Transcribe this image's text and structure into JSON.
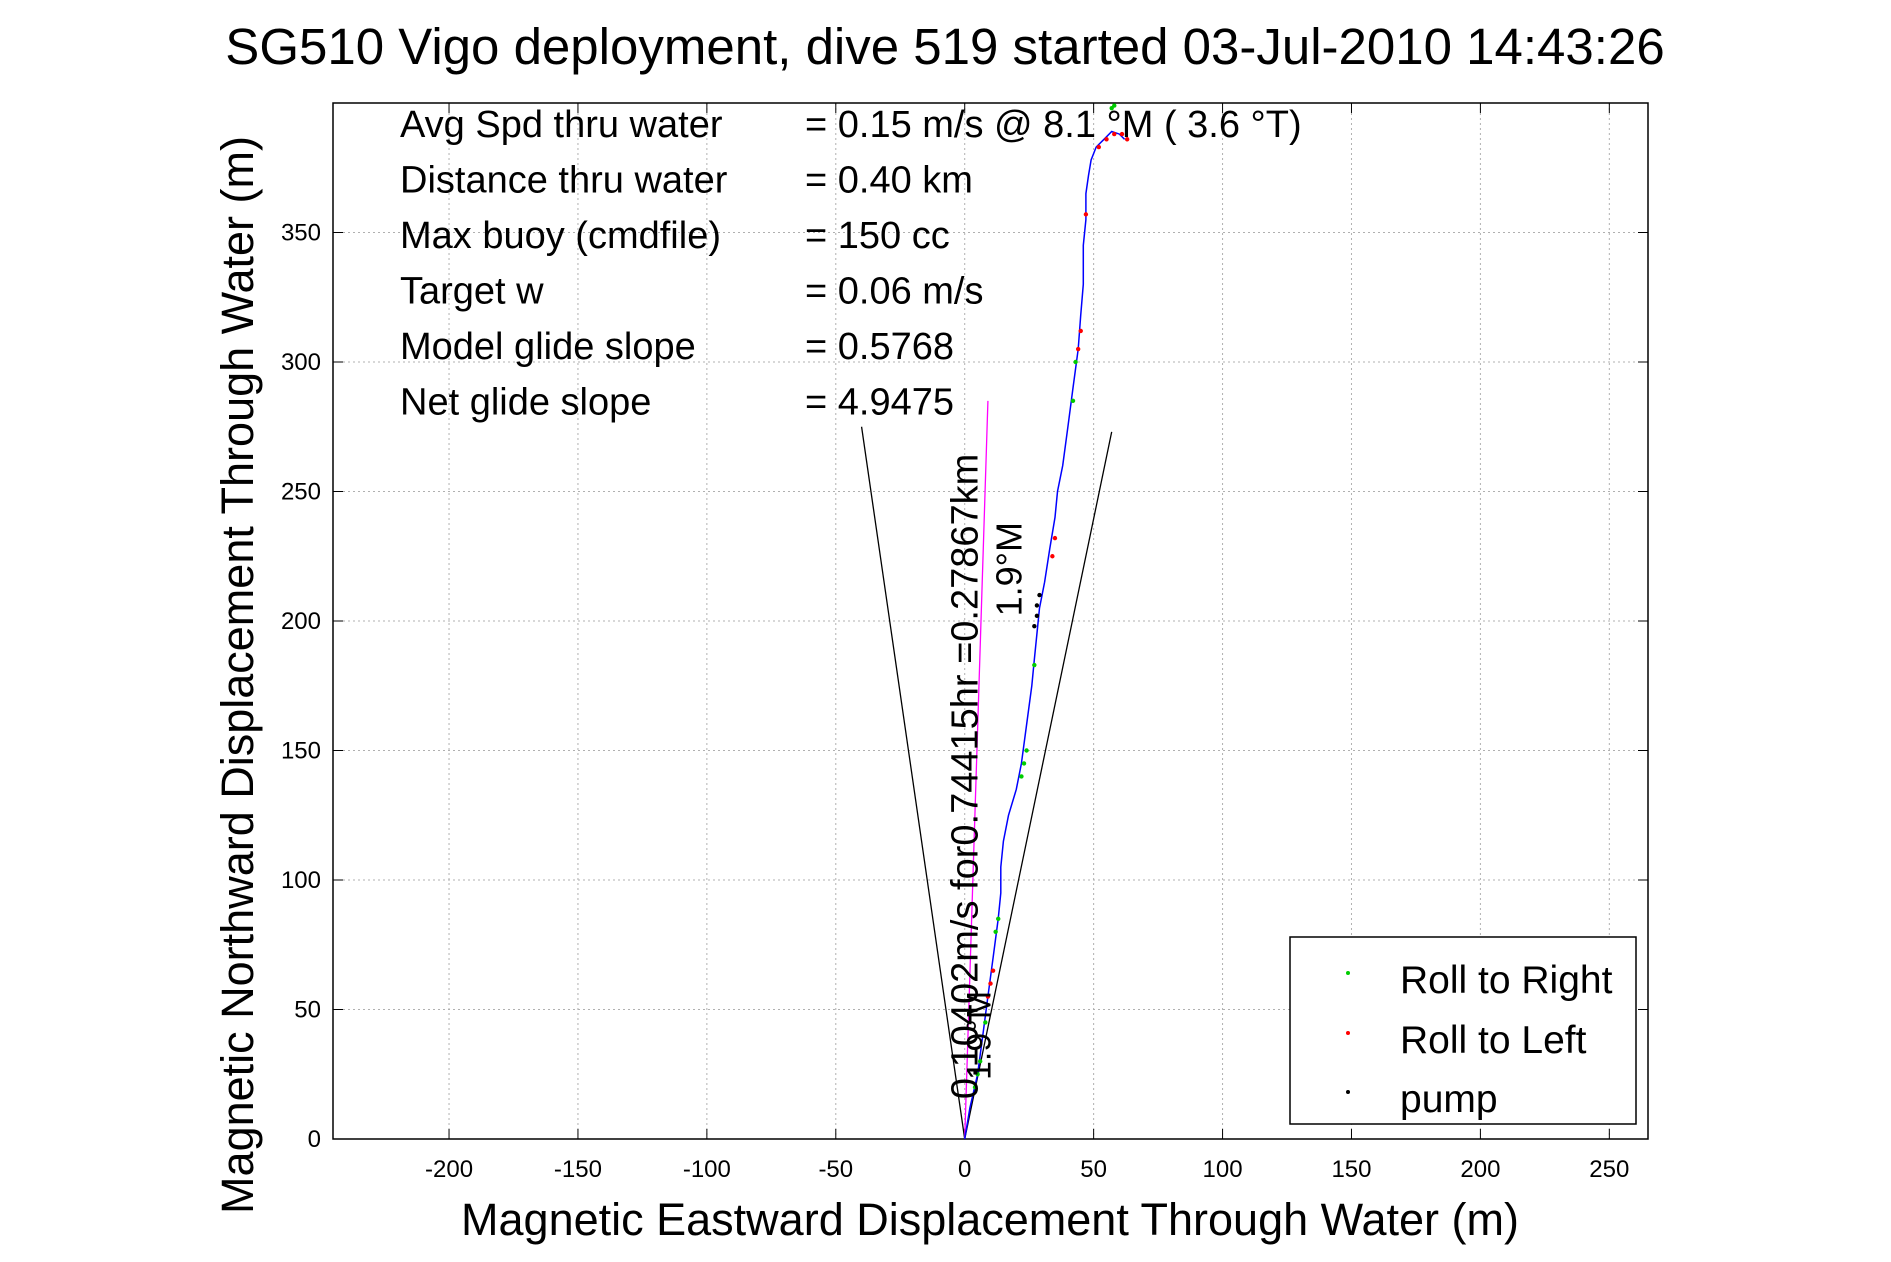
{
  "chart_data": {
    "type": "scatter",
    "title": "SG510 Vigo deployment, dive 519 started 03-Jul-2010 14:43:26",
    "xlabel": "Magnetic Eastward Displacement Through Water (m)",
    "ylabel": "Magnetic Northward Displacement Through Water (m)",
    "xlim": [
      -245,
      265
    ],
    "ylim": [
      0,
      400
    ],
    "xticks": [
      -200,
      -150,
      -100,
      -50,
      0,
      50,
      100,
      150,
      200,
      250
    ],
    "yticks": [
      0,
      50,
      100,
      150,
      200,
      250,
      300,
      350
    ],
    "grid": true,
    "legend_position": "bottom-right",
    "colors": {
      "track": "#0000ff",
      "roll_right": "#00cc00",
      "roll_left": "#ff0000",
      "pump": "#000000",
      "line": "#000000",
      "magenta": "#ff00ff"
    },
    "stats": [
      {
        "label": "Avg Spd thru water",
        "value": "=  0.15 m/s @    8.1 °M (  3.6 °T)"
      },
      {
        "label": "Distance thru water",
        "value": "=  0.40 km"
      },
      {
        "label": "Max buoy (cmdfile)",
        "value": "= 150 cc"
      },
      {
        "label": "Target w",
        "value": "= 0.06 m/s"
      },
      {
        "label": "Model glide slope",
        "value": "= 0.5768"
      },
      {
        "label": "Net glide slope",
        "value": "= 4.9475"
      }
    ],
    "annotations": [
      {
        "text": "0.10402m/s for0.74415hr =0.27867km",
        "x": 5,
        "y": 140
      },
      {
        "text": "1.9°M",
        "x": 22,
        "y": 220
      },
      {
        "text": "1.9°M",
        "x": 10,
        "y": 40
      }
    ],
    "heading_lines": [
      {
        "x": [
          0,
          -40
        ],
        "y": [
          0,
          275
        ]
      },
      {
        "x": [
          0,
          57
        ],
        "y": [
          0,
          273
        ]
      }
    ],
    "magenta_line": {
      "x": [
        0,
        9
      ],
      "y": [
        0,
        285
      ]
    },
    "track": {
      "x": [
        0,
        2,
        5,
        7,
        9,
        11,
        13,
        14,
        14,
        15,
        17,
        20,
        22,
        24,
        26,
        27,
        28,
        29,
        31,
        33,
        35,
        36,
        38,
        40,
        42,
        44,
        45,
        46,
        46,
        47,
        47,
        48,
        49,
        51,
        54,
        57,
        60,
        62
      ],
      "y": [
        0,
        12,
        25,
        40,
        55,
        70,
        85,
        95,
        105,
        115,
        125,
        135,
        145,
        160,
        175,
        185,
        195,
        205,
        215,
        228,
        240,
        250,
        260,
        275,
        290,
        305,
        318,
        330,
        345,
        355,
        365,
        372,
        378,
        383,
        386,
        389,
        388,
        386
      ]
    },
    "series": [
      {
        "name": "Roll to Right",
        "x": [
          4,
          5,
          6,
          8,
          12,
          13,
          22,
          23,
          24,
          27,
          42,
          43,
          57,
          58
        ],
        "y": [
          20,
          25,
          30,
          45,
          80,
          85,
          140,
          145,
          150,
          183,
          285,
          300,
          398,
          399
        ]
      },
      {
        "name": "Roll to Left",
        "x": [
          9,
          10,
          11,
          34,
          35,
          44,
          45,
          47,
          52,
          55,
          58,
          61,
          63
        ],
        "y": [
          55,
          60,
          65,
          225,
          232,
          305,
          312,
          357,
          383,
          386,
          388,
          388,
          386
        ]
      },
      {
        "name": "pump",
        "x": [
          27,
          28,
          28,
          29
        ],
        "y": [
          198,
          202,
          206,
          210
        ]
      }
    ]
  }
}
